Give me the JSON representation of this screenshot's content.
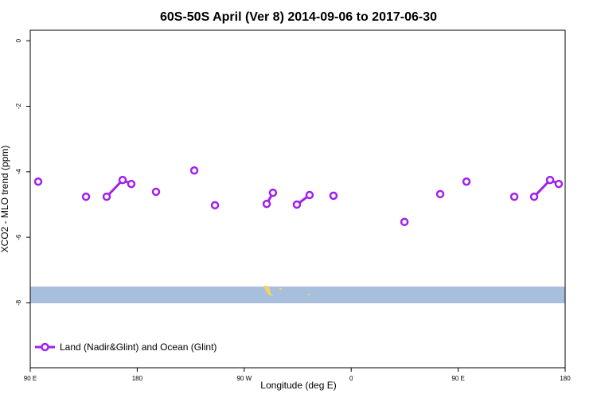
{
  "chart_data": {
    "type": "line",
    "title": "60S-50S April (Ver 8)   2014-09-06 to 2017-06-30",
    "x_label": "Longitude (deg E)",
    "y_label": "XCO2 - MLO trend (ppm)",
    "xlim": [
      90,
      540
    ],
    "ylim": [
      -9.98,
      0.32
    ],
    "xticks": [
      {
        "value": 90,
        "label": "90 E"
      },
      180,
      {
        "value": 270,
        "label": "90 W"
      },
      {
        "value": 360,
        "label": "0"
      },
      {
        "value": 450,
        "label": "90 E"
      },
      {
        "value": 540,
        "label": "180"
      }
    ],
    "yticks": [
      0,
      -2,
      -4,
      -6,
      -8
    ],
    "legend": "bottom-left",
    "series": [
      {
        "name": "Land (Nadir&Glint) and Ocean (Glint)",
        "color": "#a020f0",
        "x": [
          96.7,
          null,
          136.9,
          null,
          154.3,
          167.7,
          175.0,
          null,
          195.8,
          null,
          228.0,
          null,
          245.4,
          null,
          288.9,
          294.2,
          null,
          314.3,
          325.0,
          null,
          345.1,
          null,
          404.8,
          null,
          434.9,
          null,
          457.0,
          null,
          497.2,
          null,
          513.9,
          527.3,
          534.6
        ],
        "values": [
          -4.3,
          null,
          -4.76,
          null,
          -4.76,
          -4.25,
          -4.37,
          null,
          -4.61,
          null,
          -3.96,
          null,
          -5.02,
          null,
          -4.98,
          -4.64,
          null,
          -5.0,
          -4.71,
          null,
          -4.73,
          null,
          -5.53,
          null,
          -4.68,
          null,
          -4.3,
          null,
          -4.76,
          null,
          -4.76,
          -4.25,
          -4.37
        ]
      }
    ]
  }
}
